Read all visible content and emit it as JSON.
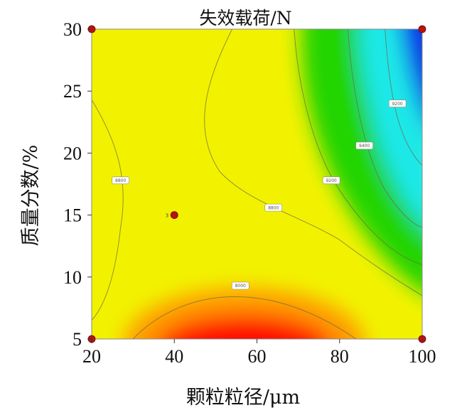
{
  "chart_data": {
    "type": "heatmap",
    "subtype": "contour",
    "title": "失效载荷/N",
    "xlabel": "颗粒粒径/μm",
    "ylabel": "质量分数/%",
    "xlim": [
      20,
      100
    ],
    "ylim": [
      5,
      30
    ],
    "x_ticks": [
      "20",
      "40",
      "60",
      "80",
      "100"
    ],
    "y_ticks": [
      "5",
      "10",
      "15",
      "20",
      "25",
      "30"
    ],
    "colormap": [
      "#ff0000",
      "#ff7a00",
      "#ffff00",
      "#00e000",
      "#00ffff",
      "#0000ff"
    ],
    "value_range": [
      8000,
      9600
    ],
    "grid": false,
    "legend": "none",
    "design_points": [
      {
        "x": 20,
        "y": 30
      },
      {
        "x": 100,
        "y": 30
      },
      {
        "x": 40,
        "y": 15
      },
      {
        "x": 20,
        "y": 5
      },
      {
        "x": 100,
        "y": 5
      }
    ],
    "center_point_label": "3",
    "contour_labels": [
      {
        "x": 27,
        "y": 17.8,
        "text": "8800"
      },
      {
        "x": 64,
        "y": 15.6,
        "text": "8800"
      },
      {
        "x": 56,
        "y": 9.3,
        "text": "8000"
      },
      {
        "x": 78,
        "y": 17.8,
        "text": "9200"
      },
      {
        "x": 86,
        "y": 20.6,
        "text": "9400"
      },
      {
        "x": 94,
        "y": 24.0,
        "text": "9200"
      }
    ]
  }
}
